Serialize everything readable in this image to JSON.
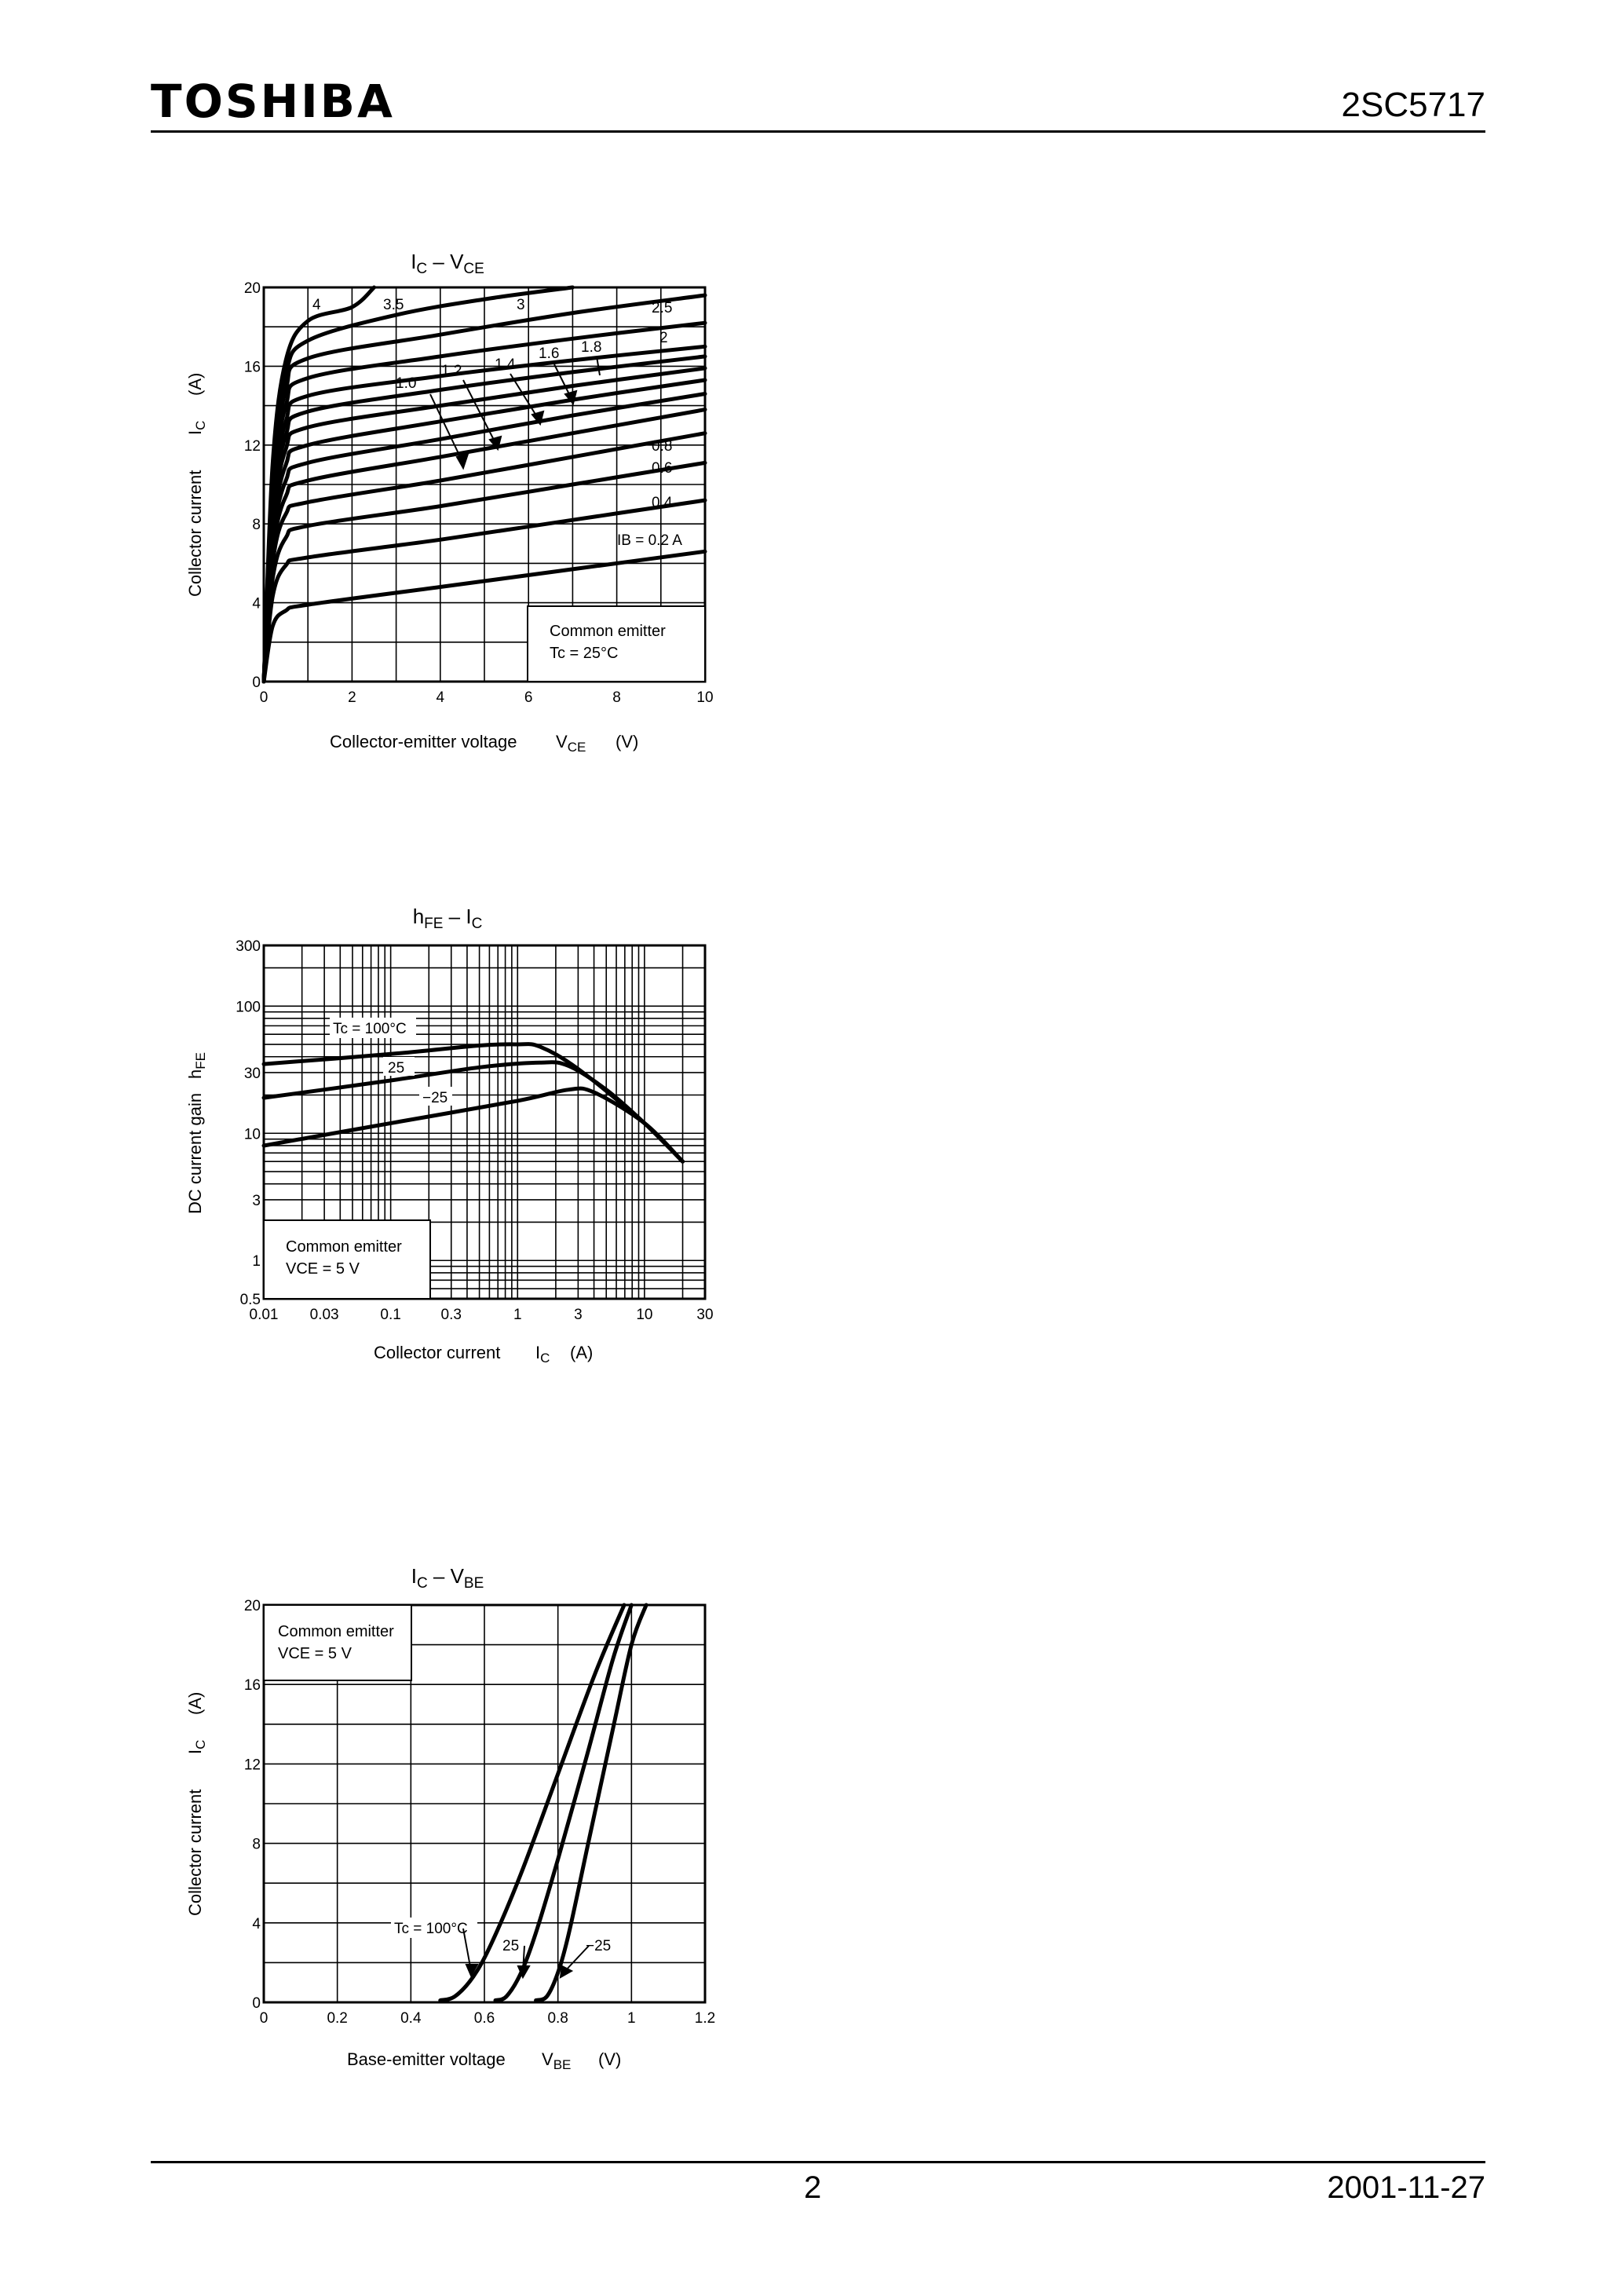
{
  "header": {
    "logo": "TOSHIBA",
    "part_number": "2SC5717"
  },
  "footer": {
    "page": "2",
    "date": "2001-11-27"
  },
  "chart_data": [
    {
      "type": "line",
      "title": "IC – VCE",
      "title_main": "I",
      "title_sub": "C",
      "title_sep": " – V",
      "title_sub2": "CE",
      "xlabel": "Collector-emitter voltage",
      "xlabel_sym": "V",
      "xlabel_sub": "CE",
      "xlabel_unit": "(V)",
      "ylabel": "Collector current",
      "ylabel_sym": "I",
      "ylabel_sub": "C",
      "ylabel_unit": "(A)",
      "xlim": [
        0,
        10
      ],
      "ylim": [
        0,
        20
      ],
      "x_ticks": [
        "0",
        "2",
        "4",
        "6",
        "8",
        "10"
      ],
      "y_ticks": [
        "0",
        "4",
        "8",
        "12",
        "16",
        "20"
      ],
      "grid": true,
      "note": [
        "Common emitter",
        "Tc = 25°C"
      ],
      "series": [
        {
          "name": "4",
          "points": [
            [
              0,
              0
            ],
            [
              0.2,
              11
            ],
            [
              0.5,
              16.3
            ],
            [
              1,
              18.3
            ],
            [
              2,
              19
            ],
            [
              2.5,
              20
            ]
          ]
        },
        {
          "name": "3.5",
          "points": [
            [
              0,
              0
            ],
            [
              0.2,
              10.5
            ],
            [
              0.5,
              15.6
            ],
            [
              1,
              17.3
            ],
            [
              3,
              18.6
            ],
            [
              5,
              19.4
            ],
            [
              7,
              20
            ]
          ]
        },
        {
          "name": "3",
          "points": [
            [
              0,
              0
            ],
            [
              0.2,
              10
            ],
            [
              0.5,
              14.8
            ],
            [
              1,
              16.4
            ],
            [
              4,
              17.6
            ],
            [
              7,
              18.7
            ],
            [
              10,
              19.6
            ]
          ]
        },
        {
          "name": "2.5",
          "points": [
            [
              0,
              0
            ],
            [
              0.2,
              9.5
            ],
            [
              0.5,
              14
            ],
            [
              1,
              15.4
            ],
            [
              4,
              16.5
            ],
            [
              7,
              17.4
            ],
            [
              10,
              18.2
            ]
          ]
        },
        {
          "name": "2",
          "points": [
            [
              0,
              0
            ],
            [
              0.2,
              9
            ],
            [
              0.5,
              13.2
            ],
            [
              1,
              14.5
            ],
            [
              4,
              15.5
            ],
            [
              7,
              16.3
            ],
            [
              10,
              17
            ]
          ]
        },
        {
          "name": "1.8",
          "points": [
            [
              0,
              0
            ],
            [
              0.2,
              8.5
            ],
            [
              0.5,
              12.5
            ],
            [
              1,
              13.7
            ],
            [
              4,
              14.8
            ],
            [
              7,
              15.7
            ],
            [
              10,
              16.5
            ]
          ]
        },
        {
          "name": "1.6",
          "points": [
            [
              0,
              0
            ],
            [
              0.2,
              8
            ],
            [
              0.5,
              11.8
            ],
            [
              1,
              12.9
            ],
            [
              4,
              14
            ],
            [
              7,
              15
            ],
            [
              10,
              15.9
            ]
          ]
        },
        {
          "name": "1.4",
          "points": [
            [
              0,
              0
            ],
            [
              0.2,
              7.5
            ],
            [
              0.5,
              11
            ],
            [
              1,
              12
            ],
            [
              4,
              13.2
            ],
            [
              7,
              14.3
            ],
            [
              10,
              15.3
            ]
          ]
        },
        {
          "name": "1.2",
          "points": [
            [
              0,
              0
            ],
            [
              0.2,
              7
            ],
            [
              0.5,
              10.2
            ],
            [
              1,
              11.1
            ],
            [
              4,
              12.3
            ],
            [
              7,
              13.5
            ],
            [
              10,
              14.6
            ]
          ]
        },
        {
          "name": "1.0",
          "points": [
            [
              0,
              0
            ],
            [
              0.2,
              6.5
            ],
            [
              0.5,
              9.4
            ],
            [
              1,
              10.2
            ],
            [
              4,
              11.4
            ],
            [
              7,
              12.6
            ],
            [
              10,
              13.8
            ]
          ]
        },
        {
          "name": "0.8",
          "points": [
            [
              0,
              0
            ],
            [
              0.2,
              6
            ],
            [
              0.5,
              8.5
            ],
            [
              1,
              9.1
            ],
            [
              4,
              10.2
            ],
            [
              7,
              11.4
            ],
            [
              10,
              12.6
            ]
          ]
        },
        {
          "name": "0.6",
          "points": [
            [
              0,
              0
            ],
            [
              0.2,
              5.2
            ],
            [
              0.5,
              7.3
            ],
            [
              1,
              7.9
            ],
            [
              4,
              8.9
            ],
            [
              7,
              10
            ],
            [
              10,
              11.1
            ]
          ]
        },
        {
          "name": "0.4",
          "points": [
            [
              0,
              0
            ],
            [
              0.2,
              4.3
            ],
            [
              0.5,
              5.9
            ],
            [
              1,
              6.3
            ],
            [
              4,
              7.2
            ],
            [
              7,
              8.2
            ],
            [
              10,
              9.2
            ]
          ]
        },
        {
          "name": "IB = 0.2 A",
          "points": [
            [
              0,
              0
            ],
            [
              0.2,
              2.8
            ],
            [
              0.5,
              3.6
            ],
            [
              1,
              3.9
            ],
            [
              4,
              4.8
            ],
            [
              7,
              5.7
            ],
            [
              10,
              6.6
            ]
          ]
        }
      ]
    },
    {
      "type": "line",
      "title": "hFE – IC",
      "title_main": "h",
      "title_sub": "FE",
      "title_sep": " – I",
      "title_sub2": "C",
      "xlabel": "Collector current",
      "xlabel_sym": "I",
      "xlabel_sub": "C",
      "xlabel_unit": "(A)",
      "ylabel": "DC current gain",
      "ylabel_sym": "h",
      "ylabel_sub": "FE",
      "ylabel_unit": "",
      "x_scale": "log",
      "y_scale": "log",
      "xlim": [
        0.01,
        30
      ],
      "ylim": [
        0.5,
        300
      ],
      "x_ticks": [
        [
          0.01,
          "0.01"
        ],
        [
          0.03,
          "0.03"
        ],
        [
          0.1,
          "0.1"
        ],
        [
          0.3,
          "0.3"
        ],
        [
          1,
          "1"
        ],
        [
          3,
          "3"
        ],
        [
          10,
          "10"
        ],
        [
          30,
          "30"
        ]
      ],
      "y_ticks": [
        [
          0.5,
          "0.5"
        ],
        [
          1,
          "1"
        ],
        [
          3,
          "3"
        ],
        [
          10,
          "10"
        ],
        [
          30,
          "30"
        ],
        [
          100,
          "100"
        ],
        [
          300,
          "300"
        ]
      ],
      "grid": true,
      "note": [
        "Common emitter",
        "VCE = 5 V"
      ],
      "series": [
        {
          "name": "Tc = 100°C",
          "points": [
            [
              0.01,
              35
            ],
            [
              0.1,
              42
            ],
            [
              0.5,
              49
            ],
            [
              1,
              50
            ],
            [
              1.5,
              48
            ],
            [
              3,
              32
            ],
            [
              10,
              12
            ],
            [
              20,
              6
            ]
          ]
        },
        {
          "name": "25",
          "points": [
            [
              0.01,
              19
            ],
            [
              0.1,
              26
            ],
            [
              0.5,
              33
            ],
            [
              1.5,
              36
            ],
            [
              2.5,
              34
            ],
            [
              5,
              22
            ],
            [
              10,
              12
            ],
            [
              20,
              6
            ]
          ]
        },
        {
          "name": "−25",
          "points": [
            [
              0.01,
              8
            ],
            [
              0.1,
              12
            ],
            [
              1,
              18
            ],
            [
              2.5,
              22
            ],
            [
              4,
              21
            ],
            [
              10,
              12
            ],
            [
              20,
              6
            ]
          ]
        }
      ]
    },
    {
      "type": "line",
      "title": "IC – VBE",
      "title_main": "I",
      "title_sub": "C",
      "title_sep": " – V",
      "title_sub2": "BE",
      "xlabel": "Base-emitter voltage",
      "xlabel_sym": "V",
      "xlabel_sub": "BE",
      "xlabel_unit": "(V)",
      "ylabel": "Collector current",
      "ylabel_sym": "I",
      "ylabel_sub": "C",
      "ylabel_unit": "(A)",
      "xlim": [
        0,
        1.2
      ],
      "ylim": [
        0,
        20
      ],
      "x_ticks": [
        "0",
        "0.2",
        "0.4",
        "0.6",
        "0.8",
        "1",
        "1.2"
      ],
      "y_ticks": [
        "0",
        "4",
        "8",
        "12",
        "16",
        "20"
      ],
      "grid": true,
      "note": [
        "Common emitter",
        "VCE = 5 V"
      ],
      "series": [
        {
          "name": "Tc = 100°C",
          "points": [
            [
              0.48,
              0.1
            ],
            [
              0.52,
              0.3
            ],
            [
              0.57,
              1.3
            ],
            [
              0.62,
              3
            ],
            [
              0.7,
              6.5
            ],
            [
              0.8,
              11.5
            ],
            [
              0.9,
              16.5
            ],
            [
              0.98,
              20
            ]
          ]
        },
        {
          "name": "25",
          "points": [
            [
              0.63,
              0.1
            ],
            [
              0.66,
              0.3
            ],
            [
              0.7,
              1.5
            ],
            [
              0.74,
              3.5
            ],
            [
              0.8,
              7.2
            ],
            [
              0.88,
              12.5
            ],
            [
              0.95,
              17.3
            ],
            [
              1.0,
              20
            ]
          ]
        },
        {
          "name": "−25",
          "points": [
            [
              0.74,
              0.1
            ],
            [
              0.77,
              0.3
            ],
            [
              0.8,
              1.5
            ],
            [
              0.83,
              3.5
            ],
            [
              0.88,
              7.8
            ],
            [
              0.95,
              13.8
            ],
            [
              1.0,
              18
            ],
            [
              1.04,
              20
            ]
          ]
        }
      ]
    }
  ]
}
